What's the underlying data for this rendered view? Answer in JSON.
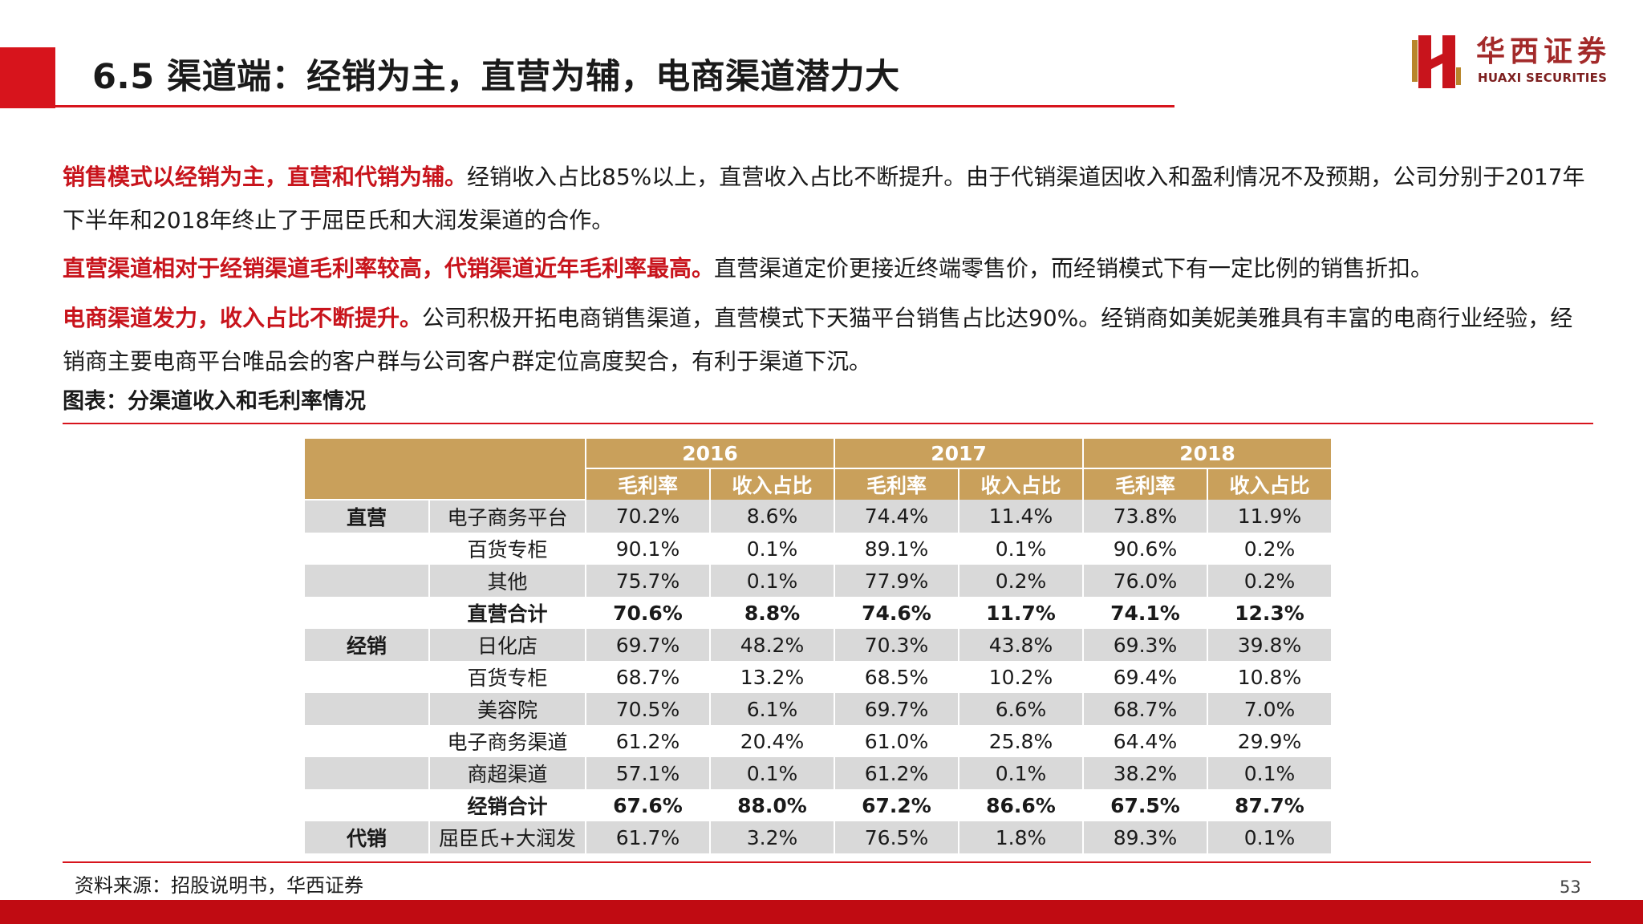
{
  "header": {
    "title": "6.5 渠道端：经销为主，直营为辅，电商渠道潜力大",
    "logo_cn": "华西证券",
    "logo_en": "HUAXI SECURITIES"
  },
  "paragraphs": [
    {
      "lead": "销售模式以经销为主，直营和代销为辅。",
      "text": "经销收入占比85%以上，直营收入占比不断提升。由于代销渠道因收入和盈利情况不及预期，公司分别于2017年下半年和2018年终止了于屈臣氏和大润发渠道的合作。"
    },
    {
      "lead": "直营渠道相对于经销渠道毛利率较高，代销渠道近年毛利率最高。",
      "text": "直营渠道定价更接近终端零售价，而经销模式下有一定比例的销售折扣。"
    },
    {
      "lead": "电商渠道发力，收入占比不断提升。",
      "text": "公司积极开拓电商销售渠道，直营模式下天猫平台销售占比达90%。经销商如美妮美雅具有丰富的电商行业经验，经销商主要电商平台唯品会的客户群与公司客户群定位高度契合，有利于渠道下沉。"
    }
  ],
  "chart_caption": "图表：分渠道收入和毛利率情况",
  "table": {
    "years": [
      "2016",
      "2017",
      "2018"
    ],
    "sub_headers": [
      "毛利率",
      "收入占比",
      "毛利率",
      "收入占比",
      "毛利率",
      "收入占比"
    ],
    "rows": [
      {
        "group": "直营",
        "channel": "电子商务平台",
        "values": [
          "70.2%",
          "8.6%",
          "74.4%",
          "11.4%",
          "73.8%",
          "11.9%"
        ]
      },
      {
        "group": "",
        "channel": "百货专柜",
        "values": [
          "90.1%",
          "0.1%",
          "89.1%",
          "0.1%",
          "90.6%",
          "0.2%"
        ]
      },
      {
        "group": "",
        "channel": "其他",
        "values": [
          "75.7%",
          "0.1%",
          "77.9%",
          "0.2%",
          "76.0%",
          "0.2%"
        ]
      },
      {
        "group": "",
        "channel": "直营合计",
        "values": [
          "70.6%",
          "8.8%",
          "74.6%",
          "11.7%",
          "74.1%",
          "12.3%"
        ]
      },
      {
        "group": "经销",
        "channel": "日化店",
        "values": [
          "69.7%",
          "48.2%",
          "70.3%",
          "43.8%",
          "69.3%",
          "39.8%"
        ]
      },
      {
        "group": "",
        "channel": "百货专柜",
        "values": [
          "68.7%",
          "13.2%",
          "68.5%",
          "10.2%",
          "69.4%",
          "10.8%"
        ]
      },
      {
        "group": "",
        "channel": "美容院",
        "values": [
          "70.5%",
          "6.1%",
          "69.7%",
          "6.6%",
          "68.7%",
          "7.0%"
        ]
      },
      {
        "group": "",
        "channel": "电子商务渠道",
        "values": [
          "61.2%",
          "20.4%",
          "61.0%",
          "25.8%",
          "64.4%",
          "29.9%"
        ]
      },
      {
        "group": "",
        "channel": "商超渠道",
        "values": [
          "57.1%",
          "0.1%",
          "61.2%",
          "0.1%",
          "38.2%",
          "0.1%"
        ]
      },
      {
        "group": "",
        "channel": "经销合计",
        "values": [
          "67.6%",
          "88.0%",
          "67.2%",
          "86.6%",
          "67.5%",
          "87.7%"
        ]
      },
      {
        "group": "代销",
        "channel": "屈臣氏+大润发",
        "values": [
          "61.7%",
          "3.2%",
          "76.5%",
          "1.8%",
          "89.3%",
          "0.1%"
        ]
      }
    ]
  },
  "footer": {
    "source": "资料来源：招股说明书，华西证券",
    "page_number": "53"
  },
  "colors": {
    "accent_red": "#d7141c",
    "header_gold": "#c9a05b",
    "row_shade": "#d9d9d9"
  }
}
